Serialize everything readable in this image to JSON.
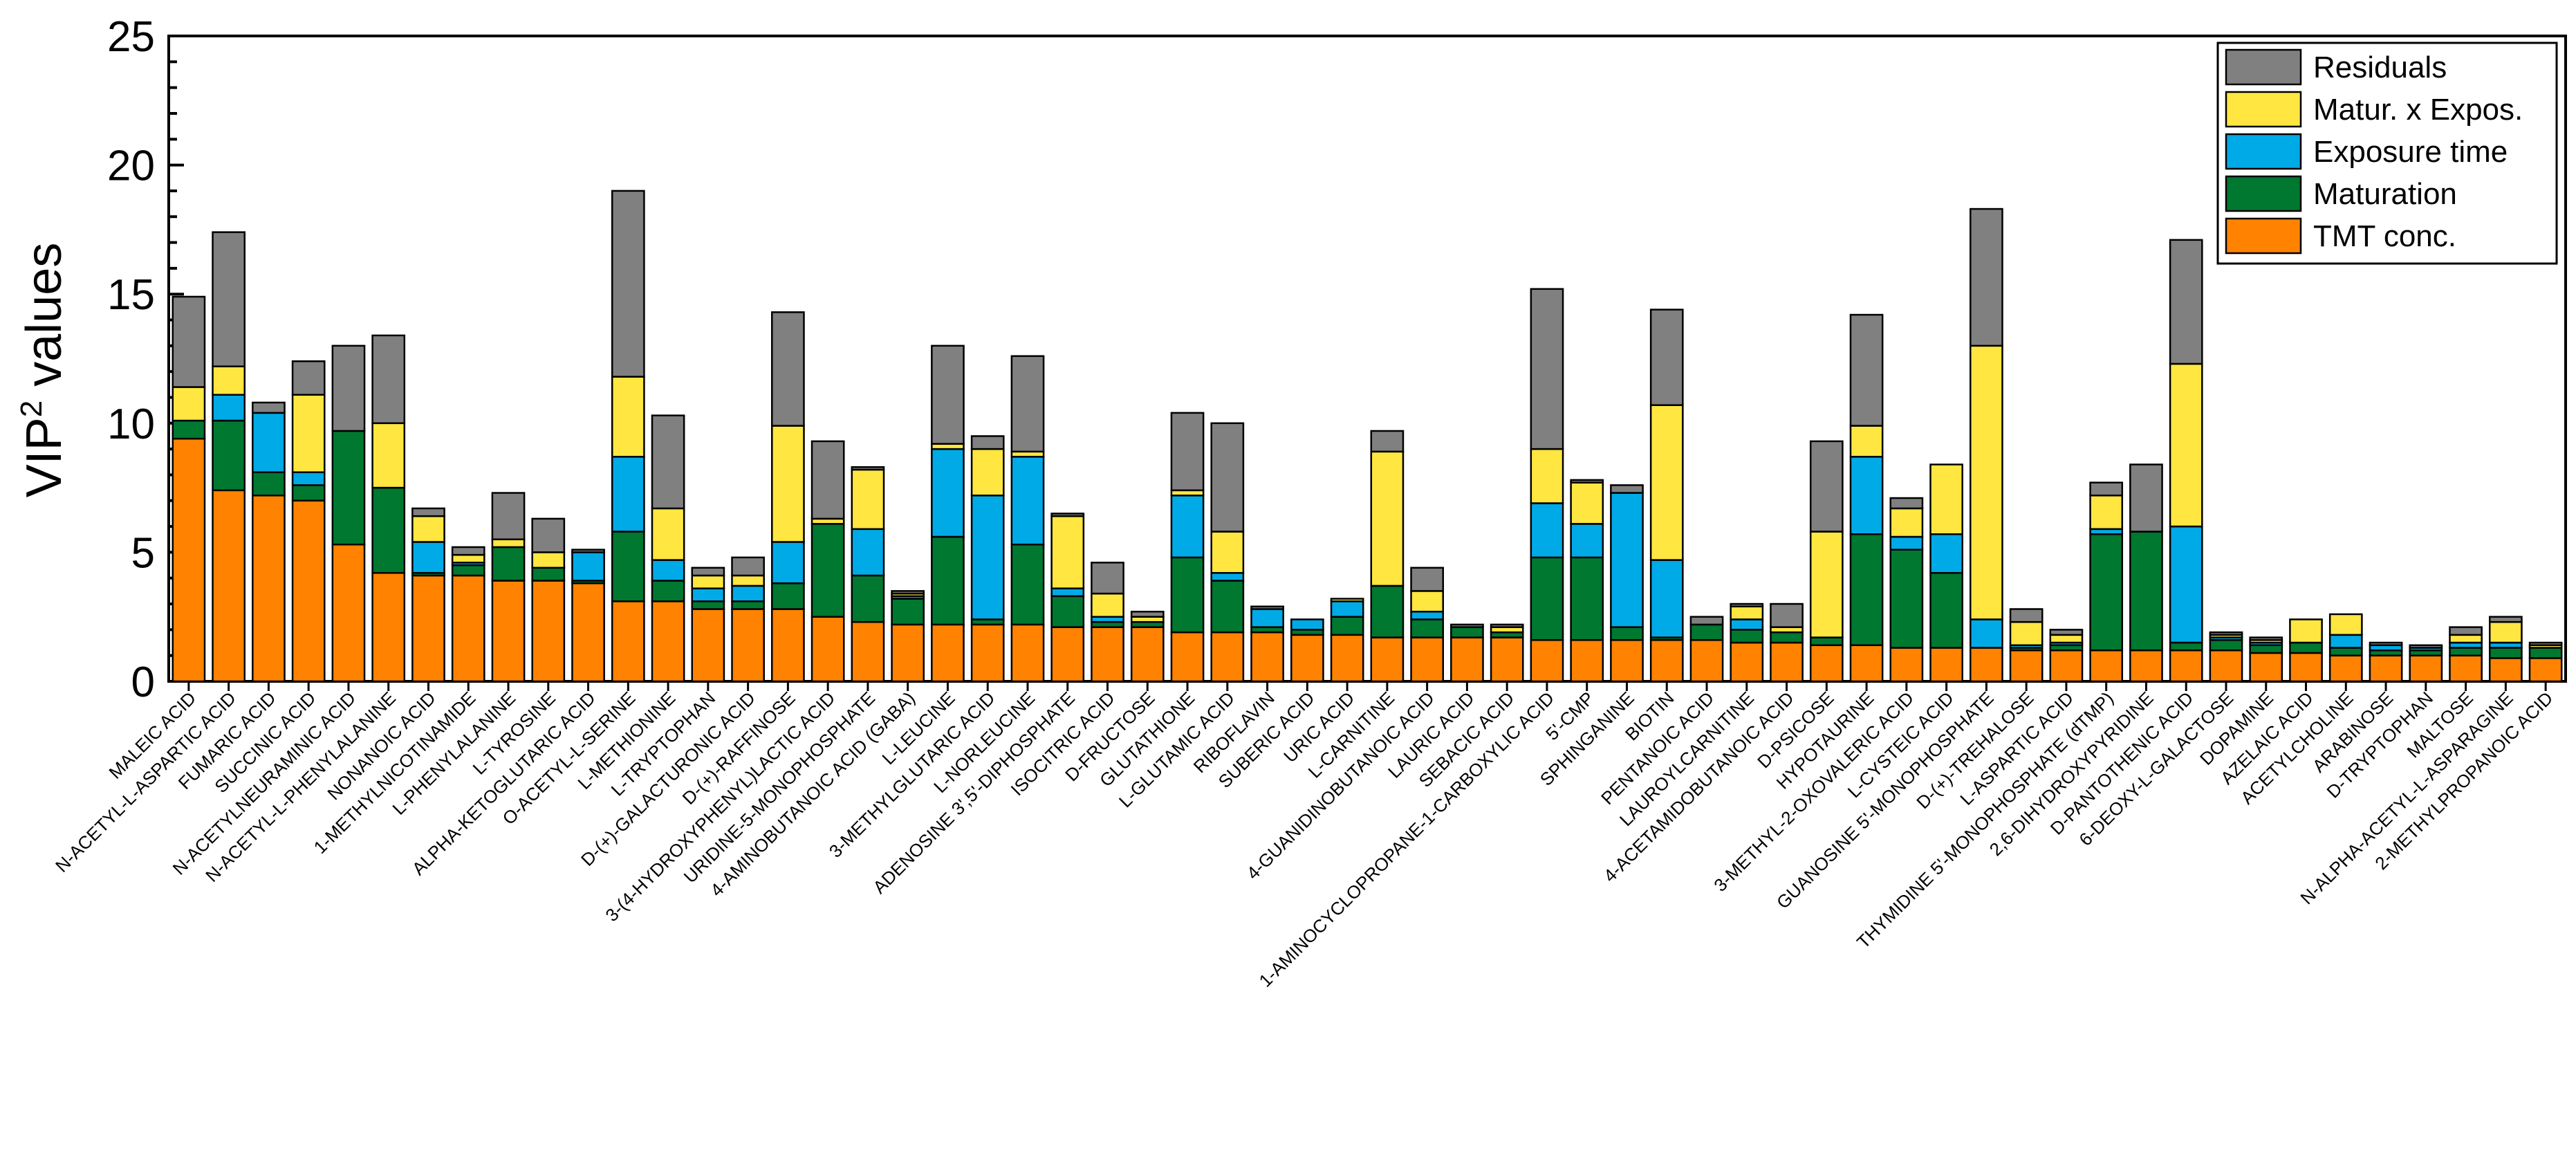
{
  "chart_data": {
    "type": "bar",
    "stacked": true,
    "ylabel_main": "VIP",
    "ylabel_sup": "2",
    "ylabel_rest": " values",
    "ylim": [
      0,
      25
    ],
    "yticks": [
      "0",
      "5",
      "10",
      "15",
      "20",
      "25"
    ],
    "yminor_step": 1,
    "legend_position": "top-right",
    "categories": [
      "MALEIC ACID",
      "N-ACETYL-L-ASPARTIC ACID",
      "FUMARIC ACID",
      "SUCCINIC ACID",
      "N-ACETYLNEURAMINIC ACID",
      "N-ACETYL-L-PHENYLALANINE",
      "NONANOIC ACID",
      "1-METHYLNICOTINAMIDE",
      "L-PHENYLALANINE",
      "L-TYROSINE",
      "ALPHA-KETOGLUTARIC ACID",
      "O-ACETYL-L-SERINE",
      "L-METHIONINE",
      "L-TRYPTOPHAN",
      "D-(+)-GALACTURONIC ACID",
      "D-(+)-RAFFINOSE",
      "3-(4-HYDROXYPHENYL)LACTIC ACID",
      "URIDINE-5-MONOPHOSPHATE",
      "4-AMINOBUTANOIC ACID (GABA)",
      "L-LEUCINE",
      "3-METHYLGLUTARIC ACID",
      "L-NORLEUCINE",
      "ADENOSINE 3',5'-DIPHOSPHATE",
      "ISOCITRIC ACID",
      "D-FRUCTOSE",
      "GLUTATHIONE",
      "L-GLUTAMIC ACID",
      "RIBOFLAVIN",
      "SUBERIC ACID",
      "URIC ACID",
      "L-CARNITINE",
      "4-GUANIDINOBUTANOIC ACID",
      "LAURIC ACID",
      "SEBACIC ACID",
      "1-AMINOCYCLOPROPANE-1-CARBOXYLIC ACID",
      "5'-CMP",
      "SPHINGANINE",
      "BIOTIN",
      "PENTANOIC ACID",
      "LAUROYLCARNITINE",
      "4-ACETAMIDOBUTANOIC ACID",
      "D-PSICOSE",
      "HYPOTAURINE",
      "3-METHYL-2-OXOVALERIC ACID",
      "L-CYSTEIC ACID",
      "GUANOSINE 5'-MONOPHOSPHATE",
      "D-(+)-TREHALOSE",
      "L-ASPARTIC ACID",
      "THYMIDINE 5'-MONOPHOSPHATE (dTMP)",
      "2,6-DIHYDROXYPYRIDINE",
      "D-PANTOTHENIC ACID",
      "6-DEOXY-L-GALACTOSE",
      "DOPAMINE",
      "AZELAIC ACID",
      "ACETYLCHOLINE",
      "ARABINOSE",
      "D-TRYPTOPHAN",
      "MALTOSE",
      "N-ALPHA-ACETYL-L-ASPARAGINE",
      "2-METHYLPROPANOIC ACID"
    ],
    "series": [
      {
        "name": "TMT conc.",
        "color": "#ff8200",
        "values": [
          9.4,
          7.4,
          7.2,
          7.0,
          5.3,
          4.2,
          4.1,
          4.1,
          3.9,
          3.9,
          3.8,
          3.1,
          3.1,
          2.8,
          2.8,
          2.8,
          2.5,
          2.3,
          2.2,
          2.2,
          2.2,
          2.2,
          2.1,
          2.1,
          2.1,
          1.9,
          1.9,
          1.9,
          1.8,
          1.8,
          1.7,
          1.7,
          1.7,
          1.7,
          1.6,
          1.6,
          1.6,
          1.6,
          1.6,
          1.5,
          1.5,
          1.4,
          1.4,
          1.3,
          1.3,
          1.3,
          1.2,
          1.2,
          1.2,
          1.2,
          1.2,
          1.2,
          1.1,
          1.1,
          1.0,
          1.0,
          1.0,
          1.0,
          0.9,
          0.9
        ]
      },
      {
        "name": "Maturation",
        "color": "#007830",
        "values": [
          0.7,
          2.7,
          0.9,
          0.6,
          4.4,
          3.3,
          0.1,
          0.4,
          1.3,
          0.5,
          0.1,
          2.7,
          0.8,
          0.3,
          0.3,
          1.0,
          3.6,
          1.8,
          1.0,
          3.4,
          0.2,
          3.1,
          1.2,
          0.2,
          0.2,
          2.9,
          2.0,
          0.2,
          0.2,
          0.7,
          2.0,
          0.7,
          0.4,
          0.2,
          3.2,
          3.2,
          0.5,
          0.1,
          0.6,
          0.5,
          0.4,
          0.3,
          4.3,
          3.8,
          2.9,
          0.0,
          0.1,
          0.2,
          4.5,
          4.6,
          0.3,
          0.4,
          0.3,
          0.4,
          0.3,
          0.2,
          0.2,
          0.3,
          0.4,
          0.4
        ]
      },
      {
        "name": "Exposure time",
        "color": "#00aae6",
        "values": [
          0.0,
          1.0,
          2.3,
          0.5,
          0.0,
          0.0,
          1.2,
          0.1,
          0.0,
          0.0,
          1.1,
          2.9,
          0.8,
          0.5,
          0.6,
          1.6,
          0.0,
          1.8,
          0.1,
          3.4,
          4.8,
          3.4,
          0.3,
          0.2,
          0.0,
          2.4,
          0.3,
          0.7,
          0.4,
          0.6,
          0.0,
          0.3,
          0.0,
          0.0,
          2.1,
          1.3,
          5.2,
          3.0,
          0.0,
          0.4,
          0.0,
          0.0,
          3.0,
          0.5,
          1.5,
          1.1,
          0.1,
          0.1,
          0.2,
          0.0,
          4.5,
          0.1,
          0.1,
          0.0,
          0.5,
          0.2,
          0.1,
          0.2,
          0.2,
          0.0
        ]
      },
      {
        "name": "Matur. x Expos.",
        "color": "#ffe640",
        "values": [
          1.3,
          1.1,
          0.0,
          3.0,
          0.0,
          2.5,
          1.0,
          0.3,
          0.3,
          0.6,
          0.0,
          3.1,
          2.0,
          0.5,
          0.4,
          4.5,
          0.2,
          2.3,
          0.1,
          0.2,
          1.8,
          0.2,
          2.8,
          0.9,
          0.2,
          0.2,
          1.6,
          0.0,
          0.0,
          0.1,
          5.2,
          0.8,
          0.0,
          0.2,
          2.1,
          1.6,
          0.0,
          6.0,
          0.0,
          0.5,
          0.2,
          4.1,
          1.2,
          1.1,
          2.7,
          10.6,
          0.9,
          0.3,
          1.3,
          0.0,
          6.3,
          0.1,
          0.1,
          0.9,
          0.8,
          0.0,
          0.0,
          0.3,
          0.8,
          0.1
        ]
      },
      {
        "name": "Residuals",
        "color": "#808080",
        "values": [
          3.5,
          5.2,
          0.4,
          1.3,
          3.3,
          3.4,
          0.3,
          0.3,
          1.8,
          1.3,
          0.1,
          7.2,
          3.6,
          0.3,
          0.7,
          4.4,
          3.0,
          0.1,
          0.1,
          3.8,
          0.5,
          3.7,
          0.1,
          1.2,
          0.2,
          3.0,
          4.2,
          0.1,
          0.0,
          0.0,
          0.8,
          0.9,
          0.1,
          0.1,
          6.2,
          0.1,
          0.3,
          3.7,
          0.3,
          0.1,
          0.9,
          3.5,
          4.3,
          0.4,
          0.0,
          5.3,
          0.5,
          0.2,
          0.5,
          2.6,
          4.8,
          0.1,
          0.1,
          0.0,
          0.0,
          0.1,
          0.1,
          0.3,
          0.2,
          0.1
        ]
      }
    ]
  }
}
